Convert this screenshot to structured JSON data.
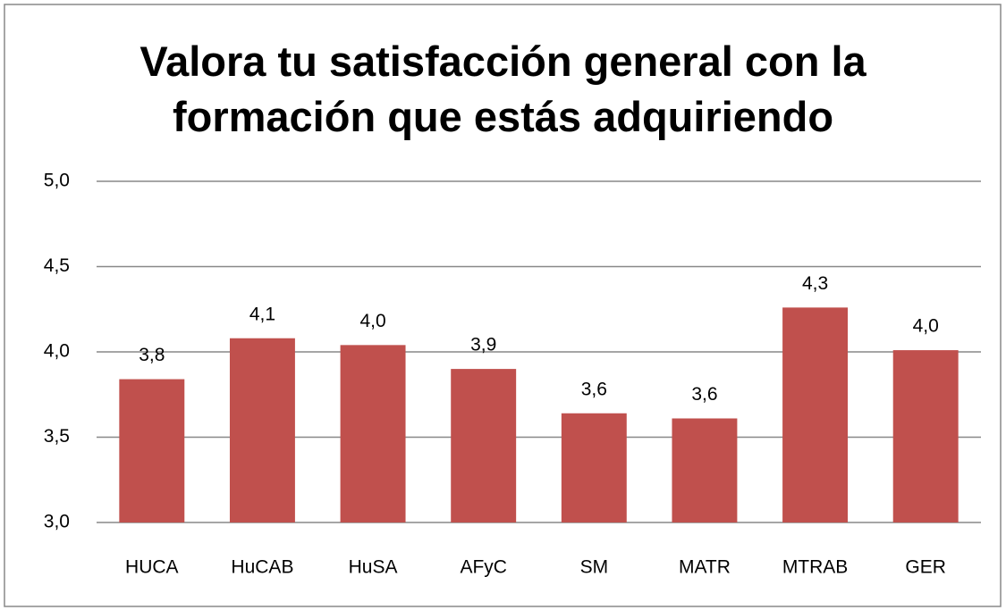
{
  "chart_data": {
    "type": "bar",
    "title": "Valora tu satisfacción general con la formación que estás adquiriendo",
    "categories": [
      "HUCA",
      "HuCAB",
      "HuSA",
      "AFyC",
      "SM",
      "MATR",
      "MTRAB",
      "GER"
    ],
    "values": [
      3.84,
      4.08,
      4.04,
      3.9,
      3.64,
      3.61,
      4.26,
      4.01
    ],
    "value_labels": [
      "3,8",
      "4,1",
      "4,0",
      "3,9",
      "3,6",
      "3,6",
      "4,3",
      "4,0"
    ],
    "color": "#c0504d",
    "ylim": [
      3,
      5
    ],
    "yticks": [
      {
        "value": 3,
        "label": "3,0"
      },
      {
        "value": 3.5,
        "label": "3,5"
      },
      {
        "value": 4,
        "label": "4,0"
      },
      {
        "value": 4.5,
        "label": "4,5"
      },
      {
        "value": 5,
        "label": "5,0"
      }
    ],
    "grid": true
  }
}
